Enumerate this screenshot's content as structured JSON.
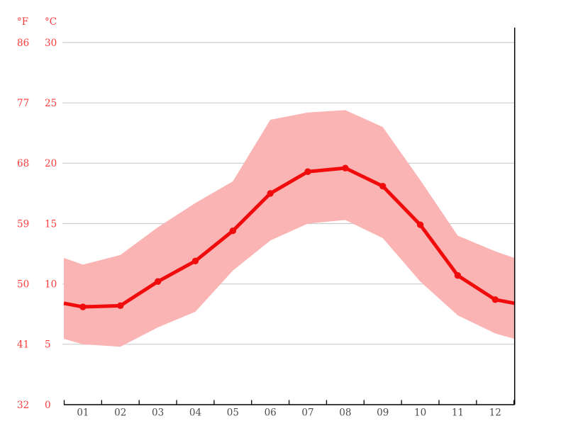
{
  "chart_data": {
    "type": "line",
    "title": "",
    "xlabel": "",
    "ylabel": "",
    "grid": true,
    "legend": false,
    "x_categories": [
      "01",
      "02",
      "03",
      "04",
      "05",
      "06",
      "07",
      "08",
      "09",
      "10",
      "11",
      "12"
    ],
    "y_axis": {
      "f_unit": "°F",
      "c_unit": "°C",
      "celsius_ticks": [
        0,
        5,
        10,
        15,
        20,
        25,
        30
      ],
      "fahrenheit_ticks": [
        32,
        41,
        50,
        59,
        68,
        77,
        86
      ],
      "ylim_c": [
        0,
        31.2
      ]
    },
    "series": [
      {
        "name": "mean-temperature-c",
        "role": "mean",
        "values": [
          8.1,
          8.2,
          10.2,
          11.9,
          14.4,
          17.5,
          19.3,
          19.6,
          18.1,
          14.9,
          10.7,
          8.7
        ]
      },
      {
        "name": "max-temperature-c",
        "role": "band-top",
        "values": [
          11.6,
          12.4,
          14.7,
          16.7,
          18.5,
          23.6,
          24.2,
          24.4,
          23.0,
          18.6,
          14.0,
          12.7
        ]
      },
      {
        "name": "min-temperature-c",
        "role": "band-bottom",
        "values": [
          5.0,
          4.8,
          6.4,
          7.7,
          11.1,
          13.6,
          15.0,
          15.3,
          13.8,
          10.2,
          7.4,
          5.9
        ]
      }
    ],
    "colors": {
      "mean_line": "#f00c0c",
      "band_fill": "#fbb4b4",
      "gridline": "#cccccc",
      "axis": "#000000",
      "y_label": "#ff3b3b",
      "x_label": "#4d4d4d"
    }
  }
}
